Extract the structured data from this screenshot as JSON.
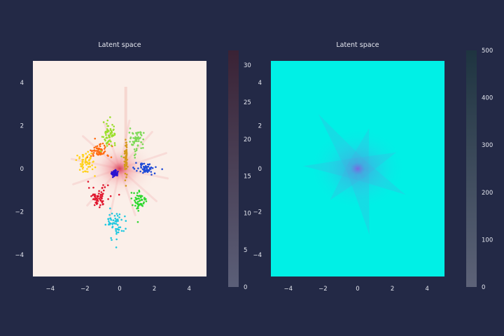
{
  "colors": {
    "background": "#232946",
    "left_field": "#fbefe9",
    "right_field": "#00f0e6",
    "left_colorbar_top": "#3a2235",
    "left_colorbar_bottom": "#5b5f78",
    "right_colorbar_top": "#1e3440",
    "right_colorbar_bottom": "#5d6278"
  },
  "chart_data": [
    {
      "type": "scatter",
      "title": "Latent space",
      "xlabel": "",
      "ylabel": "",
      "xlim": [
        -5,
        5
      ],
      "ylim": [
        -5,
        5
      ],
      "xticks": [
        "−4",
        "−2",
        "0",
        "2",
        "4"
      ],
      "yticks": [
        "−4",
        "−2",
        "0",
        "2",
        "4"
      ],
      "grid": false,
      "background": "density heatmap (pale) with colorbar",
      "colorbar": {
        "min": 0,
        "max": 32,
        "ticks": [
          "0",
          "5",
          "10",
          "15",
          "20",
          "25",
          "30"
        ]
      },
      "clusters": [
        {
          "color": "#e0152c",
          "center": [
            -1.2,
            -1.3
          ],
          "spread": [
            0.5,
            0.4
          ]
        },
        {
          "color": "#ff6a10",
          "center": [
            -1.25,
            0.8
          ],
          "spread": [
            0.55,
            0.3
          ]
        },
        {
          "color": "#ffd11a",
          "center": [
            -1.9,
            0.3
          ],
          "spread": [
            0.45,
            0.45
          ]
        },
        {
          "color": "#9adf2a",
          "center": [
            -0.6,
            1.65
          ],
          "spread": [
            0.3,
            0.4
          ]
        },
        {
          "color": "#7ed957",
          "center": [
            1.0,
            1.3
          ],
          "spread": [
            0.35,
            0.5
          ]
        },
        {
          "color": "#1f4bd6",
          "center": [
            1.5,
            0.0
          ],
          "spread": [
            0.5,
            0.2
          ]
        },
        {
          "color": "#2ed82e",
          "center": [
            1.1,
            -1.5
          ],
          "spread": [
            0.4,
            0.4
          ]
        },
        {
          "color": "#20c8e0",
          "center": [
            -0.2,
            -2.6
          ],
          "spread": [
            0.45,
            0.55
          ]
        },
        {
          "color": "#d49a1c",
          "center": [
            0.35,
            0.5
          ],
          "spread": [
            0.08,
            0.9
          ]
        },
        {
          "color": "#2a12d0",
          "center": [
            -0.3,
            -0.2
          ],
          "spread": [
            0.12,
            0.12
          ]
        }
      ]
    },
    {
      "type": "heatmap",
      "title": "Latent space",
      "xlabel": "",
      "ylabel": "",
      "xlim": [
        -5,
        5
      ],
      "ylim": [
        -5,
        5
      ],
      "xticks": [
        "−4",
        "−2",
        "0",
        "2",
        "4"
      ],
      "yticks": [
        "−4",
        "−2",
        "0",
        "2",
        "4"
      ],
      "grid": false,
      "colorbar": {
        "min": 0,
        "max": 500,
        "ticks": [
          "0",
          "100",
          "200",
          "300",
          "400",
          "500"
        ]
      }
    }
  ]
}
